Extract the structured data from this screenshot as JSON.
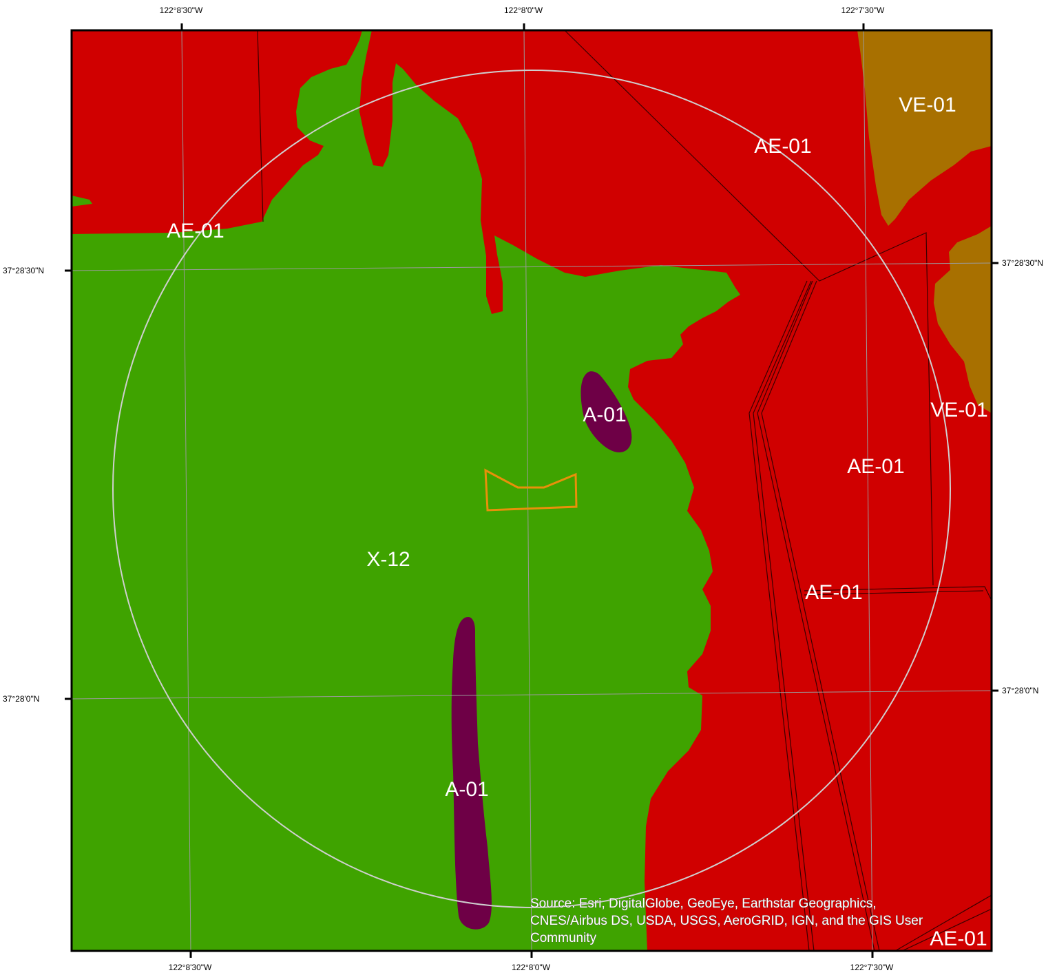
{
  "map": {
    "colors": {
      "X-12": "#3fa300",
      "AE-01": "#d00000",
      "VE-01": "#a87000",
      "A-01": "#6e0046",
      "buffer": "#cfcfcf",
      "site": "#e8900a"
    },
    "top_ticks": [
      "122°8'30\"W",
      "122°8'0\"W",
      "122°7'30\"W"
    ],
    "bottom_ticks": [
      "122°8'30\"W",
      "122°8'0\"W",
      "122°7'30\"W"
    ],
    "left_ticks": [
      "37°28'30\"N",
      "37°28'0\"N"
    ],
    "right_ticks": [
      "37°28'30\"N",
      "37°28'0\"N"
    ],
    "zone_labels": {
      "ae_upper_left": "AE-01",
      "ae_top": "AE-01",
      "ve_top": "VE-01",
      "ve_right": "VE-01",
      "a_upper": "A-01",
      "ae_right": "AE-01",
      "x12": "X-12",
      "ae_lower_right": "AE-01",
      "a_lower": "A-01",
      "ae_corner": "AE-01"
    },
    "attribution": [
      "Source: Esri, DigitalGlobe, GeoEye, Earthstar Geographics,",
      "CNES/Airbus DS, USDA, USGS, AeroGRID, IGN, and the GIS User",
      "Community"
    ]
  }
}
